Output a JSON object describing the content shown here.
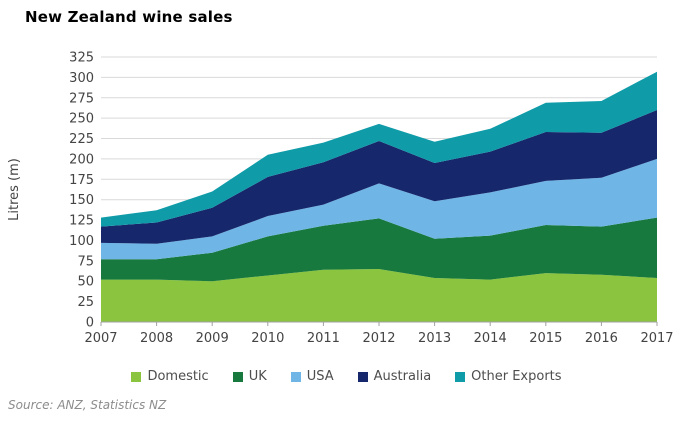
{
  "title": "New Zealand wine sales",
  "source": "Source: ANZ, Statistics NZ",
  "colors": {
    "domestic": "#8BC53F",
    "uk": "#17793D",
    "usa": "#6FB5E5",
    "australia": "#16276B",
    "other_exports": "#0F9BA8",
    "gridline": "#D9D9D9",
    "axis": "#A0A0A0",
    "tick_text": "#444444"
  },
  "chart_data": {
    "type": "area",
    "stacked": true,
    "title": "New Zealand wine sales",
    "ylabel": "Litres (m)",
    "xlabel": "",
    "x": [
      2007,
      2008,
      2009,
      2010,
      2011,
      2012,
      2013,
      2014,
      2015,
      2016,
      2017
    ],
    "series": [
      {
        "name": "Domestic",
        "color": "#8BC53F",
        "values": [
          52,
          52,
          50,
          57,
          64,
          65,
          54,
          52,
          60,
          58,
          54
        ]
      },
      {
        "name": "UK",
        "color": "#17793D",
        "values": [
          25,
          25,
          35,
          48,
          54,
          62,
          48,
          54,
          59,
          59,
          74
        ]
      },
      {
        "name": "USA",
        "color": "#6FB5E5",
        "values": [
          20,
          19,
          20,
          25,
          26,
          43,
          46,
          53,
          54,
          60,
          72
        ]
      },
      {
        "name": "Australia",
        "color": "#16276B",
        "values": [
          20,
          26,
          35,
          48,
          52,
          52,
          47,
          50,
          60,
          55,
          60
        ]
      },
      {
        "name": "Other Exports",
        "color": "#0F9BA8",
        "values": [
          11,
          15,
          20,
          27,
          24,
          21,
          26,
          28,
          36,
          39,
          47
        ]
      }
    ],
    "totals": [
      128,
      137,
      160,
      205,
      220,
      243,
      221,
      237,
      269,
      271,
      307
    ],
    "ylim": [
      0,
      325
    ],
    "ytick_step": 25,
    "grid": true,
    "legend_position": "bottom"
  }
}
